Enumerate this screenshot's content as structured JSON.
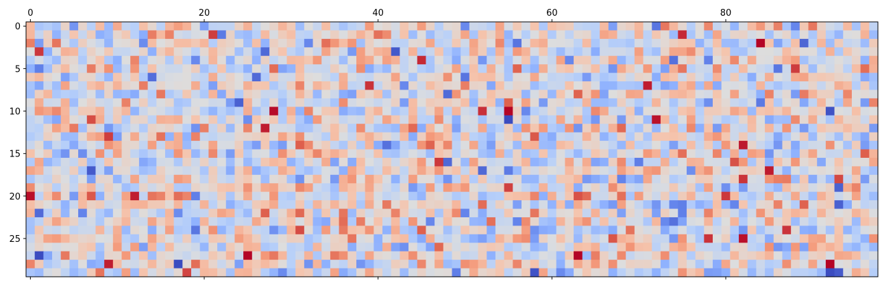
{
  "chart_data": {
    "type": "heatmap",
    "title": "",
    "xlabel": "",
    "ylabel": "",
    "colormap": "coolwarm",
    "n_rows": 30,
    "n_cols": 98,
    "x_ticks": [
      0,
      20,
      40,
      60,
      80
    ],
    "y_ticks": [
      0,
      5,
      10,
      15,
      20,
      25
    ],
    "x_tick_labels": [
      "0",
      "20",
      "40",
      "60",
      "80"
    ],
    "y_tick_labels": [
      "0",
      "5",
      "10",
      "15",
      "20",
      "25"
    ],
    "x_axis_position": "top",
    "value_range": [
      -3,
      3
    ],
    "distribution": "standard normal random values",
    "notable_cells": [
      {
        "row": 28,
        "col": 92,
        "value": 3.0
      },
      {
        "row": 29,
        "col": 58,
        "value": -2.9
      },
      {
        "row": 16,
        "col": 48,
        "value": -2.6
      },
      {
        "row": 17,
        "col": 52,
        "value": -2.6
      },
      {
        "row": 1,
        "col": 75,
        "value": 2.7
      },
      {
        "row": 12,
        "col": 27,
        "value": 2.8
      },
      {
        "row": 28,
        "col": 9,
        "value": 2.8
      },
      {
        "row": 25,
        "col": 82,
        "value": 2.9
      },
      {
        "row": 11,
        "col": 7,
        "value": 2.4
      },
      {
        "row": 19,
        "col": 55,
        "value": 2.5
      }
    ]
  }
}
